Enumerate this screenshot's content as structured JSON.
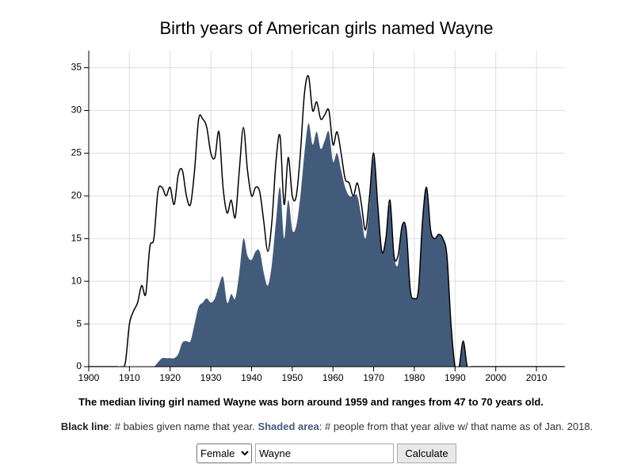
{
  "chart_data": {
    "type": "line-area",
    "title": "Birth years of American girls named Wayne",
    "x": [
      1900,
      1901,
      1902,
      1903,
      1904,
      1905,
      1906,
      1907,
      1908,
      1909,
      1910,
      1911,
      1912,
      1913,
      1914,
      1915,
      1916,
      1917,
      1918,
      1919,
      1920,
      1921,
      1922,
      1923,
      1924,
      1925,
      1926,
      1927,
      1928,
      1929,
      1930,
      1931,
      1932,
      1933,
      1934,
      1935,
      1936,
      1937,
      1938,
      1939,
      1940,
      1941,
      1942,
      1943,
      1944,
      1945,
      1946,
      1947,
      1948,
      1949,
      1950,
      1951,
      1952,
      1953,
      1954,
      1955,
      1956,
      1957,
      1958,
      1959,
      1960,
      1961,
      1962,
      1963,
      1964,
      1965,
      1966,
      1967,
      1968,
      1969,
      1970,
      1971,
      1972,
      1973,
      1974,
      1975,
      1976,
      1977,
      1978,
      1979,
      1980,
      1981,
      1982,
      1983,
      1984,
      1985,
      1986,
      1987,
      1988,
      1989,
      1990,
      1991,
      1992,
      1993,
      1994,
      1995,
      1996,
      1997,
      1998,
      1999,
      2000,
      2001,
      2002,
      2003,
      2004,
      2005,
      2006,
      2007,
      2008,
      2009,
      2010,
      2011,
      2012,
      2013,
      2014,
      2015,
      2016,
      2017
    ],
    "series": [
      {
        "name": "Black line",
        "description": ": # babies given name that year.",
        "style": "line",
        "color": "#000000",
        "values": [
          0,
          0,
          0,
          0,
          0,
          0,
          0,
          0,
          0,
          0.5,
          5,
          6.5,
          7.5,
          9.5,
          8.5,
          14,
          15,
          20.5,
          21,
          20,
          21,
          19,
          22.5,
          23,
          20,
          19,
          23,
          29,
          29,
          28,
          25,
          24.5,
          27.5,
          21,
          18,
          19.5,
          17.5,
          23,
          28,
          23,
          20,
          21,
          20.5,
          17,
          13.5,
          17,
          24,
          27,
          19,
          24.5,
          20,
          20,
          25,
          32,
          34,
          30,
          31,
          29,
          29.5,
          30,
          26,
          27.5,
          25,
          22,
          21.5,
          20,
          21.5,
          19,
          16,
          20,
          25,
          19,
          13.5,
          15,
          19.5,
          13,
          13,
          16.5,
          16,
          9,
          8,
          9,
          17,
          21,
          16,
          15,
          15.5,
          15,
          13,
          5,
          0,
          0,
          3,
          0,
          0,
          0,
          0,
          0,
          0,
          0,
          0,
          0,
          0,
          0,
          0,
          0,
          0,
          0,
          0,
          0,
          0,
          0,
          0,
          0,
          0,
          0,
          0,
          0
        ]
      },
      {
        "name": "Shaded area",
        "description": ": # people from that year alive w/ that name as of Jan. 2018.",
        "style": "area",
        "color": "#435b7b",
        "values": [
          0,
          0,
          0,
          0,
          0,
          0,
          0,
          0,
          0,
          0,
          0,
          0,
          0,
          0,
          0,
          0,
          0,
          0.5,
          1,
          1,
          1,
          1,
          1.5,
          2.8,
          3,
          3,
          5,
          7,
          7.5,
          8,
          7.5,
          8,
          9.5,
          10.5,
          7.5,
          8.5,
          8,
          11,
          15,
          13,
          12.5,
          13.5,
          13.5,
          11,
          9.5,
          12,
          17,
          21,
          15,
          19.5,
          16,
          16.5,
          20,
          25,
          28.5,
          26,
          27.5,
          25.5,
          26.5,
          27.5,
          24,
          25,
          23,
          21,
          20,
          20,
          20,
          17.5,
          15,
          19,
          24.5,
          18.5,
          13.5,
          15,
          19,
          13,
          12,
          16.5,
          16,
          9,
          8,
          9,
          17,
          21,
          16,
          15,
          15.5,
          15,
          13,
          5,
          0,
          0,
          3,
          0,
          0,
          0,
          0,
          0,
          0,
          0,
          0,
          0,
          0,
          0,
          0,
          0,
          0,
          0,
          0,
          0,
          0,
          0,
          0,
          0,
          0,
          0,
          0,
          0
        ]
      }
    ],
    "xlim": [
      1900,
      2017
    ],
    "xticks": [
      1900,
      1910,
      1920,
      1930,
      1940,
      1950,
      1960,
      1970,
      1980,
      1990,
      2000,
      2010
    ],
    "ylim": [
      0,
      37
    ],
    "yticks": [
      0,
      5,
      10,
      15,
      20,
      25,
      30,
      35
    ],
    "grid": true
  },
  "summary": "The median living girl named Wayne was born around 1959 and ranges from 47 to 70 years old.",
  "form": {
    "gender": "Female",
    "name": "Wayne",
    "button": "Calculate"
  }
}
